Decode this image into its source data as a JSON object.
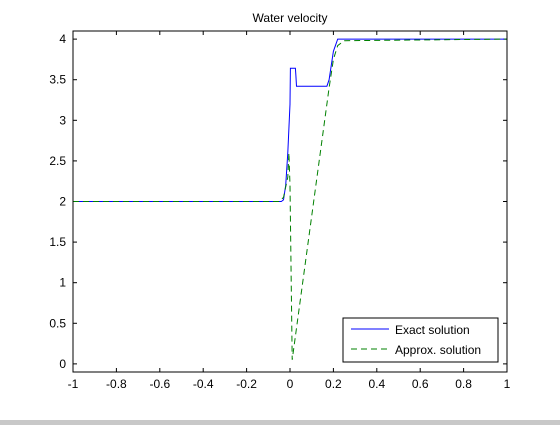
{
  "figure": {
    "background": "#ffffff"
  },
  "chart_data": {
    "type": "line",
    "title": "Water velocity",
    "xlabel": "",
    "ylabel": "",
    "xlim": [
      -1,
      1
    ],
    "ylim": [
      -0.1,
      4.1
    ],
    "grid": false,
    "legend_position": "bottom-right",
    "x_ticks": [
      -1,
      -0.8,
      -0.6,
      -0.4,
      -0.2,
      0,
      0.2,
      0.4,
      0.6,
      0.8,
      1
    ],
    "x_tick_labels": [
      "-1",
      "-0.8",
      "-0.6",
      "-0.4",
      "-0.2",
      "0",
      "0.2",
      "0.4",
      "0.6",
      "0.8",
      "1"
    ],
    "y_ticks": [
      0,
      0.5,
      1,
      1.5,
      2,
      2.5,
      3,
      3.5,
      4
    ],
    "y_tick_labels": [
      "0",
      "0.5",
      "1",
      "1.5",
      "2",
      "2.5",
      "3",
      "3.5",
      "4"
    ],
    "series": [
      {
        "name": "Exact solution",
        "color": "#0000ff",
        "style": "solid",
        "x": [
          -1,
          -0.04,
          -0.03,
          -0.02,
          -0.01,
          0,
          0.002,
          0.004,
          0.025,
          0.027,
          0.03,
          0.17,
          0.18,
          0.2,
          0.22,
          1
        ],
        "y": [
          2,
          2,
          2.02,
          2.2,
          2.6,
          3.2,
          3.64,
          3.64,
          3.64,
          3.55,
          3.42,
          3.42,
          3.5,
          3.85,
          4,
          4
        ]
      },
      {
        "name": "Approx. solution",
        "color": "#008000",
        "style": "dashed",
        "x": [
          -1,
          -0.05,
          -0.03,
          -0.01,
          -0.005,
          0,
          0.01,
          0.18,
          0.2,
          0.22,
          0.25,
          1
        ],
        "y": [
          2,
          2,
          2.05,
          2.3,
          2.6,
          2.2,
          0.05,
          3.4,
          3.75,
          3.92,
          3.98,
          4
        ]
      }
    ]
  }
}
